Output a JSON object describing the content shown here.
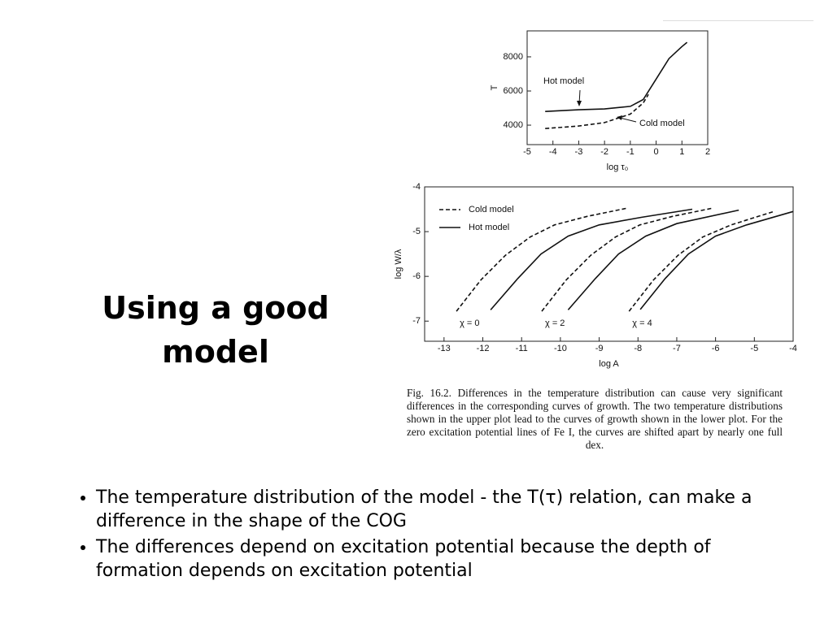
{
  "slide": {
    "title": "Using a good model",
    "bullets": [
      "The temperature distribution of the model - the T(τ) relation, can make a difference in the shape of the COG",
      "The differences depend on excitation potential because the depth of formation depends on excitation potential"
    ],
    "caption": "Fig. 16.2.    Differences in the temperature distribution can cause very significant differences in the corresponding curves of growth. The two temperature distributions shown in the upper plot lead to the curves of growth shown in the lower plot. For the zero excitation potential lines of Fe I, the curves are shifted apart by nearly one full dex."
  },
  "chart_data": [
    {
      "type": "line",
      "xlabel": "log τ₀",
      "ylabel": "T",
      "xlim": [
        -5,
        2
      ],
      "xticks": [
        -5,
        -4,
        -3,
        -2,
        -1,
        0,
        1,
        2
      ],
      "ylim": [
        2860,
        9520
      ],
      "yticks": [
        4000,
        6000,
        8000
      ],
      "series": [
        {
          "name": "Hot model",
          "color": "#111111",
          "dashed": false,
          "x": [
            -4.3,
            -3,
            -2,
            -1,
            -0.5,
            0,
            0.5,
            1,
            1.2
          ],
          "values": [
            4800,
            4900,
            4950,
            5100,
            5500,
            6700,
            7900,
            8600,
            8850
          ]
        },
        {
          "name": "Cold model",
          "color": "#111111",
          "dashed": true,
          "x": [
            -4.3,
            -3,
            -2,
            -1,
            -0.5,
            -0.3
          ],
          "values": [
            3800,
            3950,
            4150,
            4650,
            5300,
            5800
          ]
        }
      ]
    },
    {
      "type": "line",
      "xlabel": "log A",
      "ylabel": "log W/λ",
      "xlim": [
        -13.5,
        -4
      ],
      "xticks": [
        -13,
        -12,
        -11,
        -10,
        -9,
        -8,
        -7,
        -6,
        -5,
        -4
      ],
      "ylim": [
        -7.45,
        -4
      ],
      "yticks": [
        -7,
        -6,
        -5,
        -4
      ],
      "groups": [
        {
          "label": "χ = 0",
          "series": [
            {
              "name": "Cold model",
              "color": "#111111",
              "dashed": true,
              "x": [
                -12.68,
                -12.05,
                -11.42,
                -10.78,
                -10.15,
                -9.31,
                -8.3
              ],
              "values": [
                -6.78,
                -6.08,
                -5.53,
                -5.12,
                -4.85,
                -4.66,
                -4.48
              ]
            },
            {
              "name": "Hot model",
              "color": "#111111",
              "dashed": false,
              "x": [
                -11.8,
                -11.1,
                -10.5,
                -9.8,
                -9.0,
                -7.9,
                -6.6
              ],
              "values": [
                -6.75,
                -6.05,
                -5.5,
                -5.1,
                -4.85,
                -4.68,
                -4.5
              ]
            }
          ]
        },
        {
          "label": "χ = 2",
          "series": [
            {
              "name": "Cold model",
              "color": "#111111",
              "dashed": true,
              "x": [
                -10.48,
                -9.85,
                -9.22,
                -8.58,
                -7.95,
                -7.11,
                -6.1
              ],
              "values": [
                -6.78,
                -6.08,
                -5.53,
                -5.12,
                -4.85,
                -4.66,
                -4.48
              ]
            },
            {
              "name": "Hot model",
              "color": "#111111",
              "dashed": false,
              "x": [
                -9.8,
                -9.1,
                -8.5,
                -7.8,
                -7.0,
                -5.4
              ],
              "values": [
                -6.75,
                -6.05,
                -5.5,
                -5.1,
                -4.82,
                -4.52
              ]
            }
          ]
        },
        {
          "label": "χ = 4",
          "series": [
            {
              "name": "Cold model",
              "color": "#111111",
              "dashed": true,
              "x": [
                -8.23,
                -7.6,
                -6.97,
                -6.33,
                -5.6,
                -4.5
              ],
              "values": [
                -6.78,
                -6.08,
                -5.53,
                -5.12,
                -4.85,
                -4.55
              ]
            },
            {
              "name": "Hot model",
              "color": "#111111",
              "dashed": false,
              "x": [
                -7.94,
                -7.3,
                -6.7,
                -6.0,
                -5.2,
                -4.0
              ],
              "values": [
                -6.74,
                -6.05,
                -5.5,
                -5.1,
                -4.85,
                -4.55
              ]
            }
          ]
        }
      ]
    }
  ]
}
